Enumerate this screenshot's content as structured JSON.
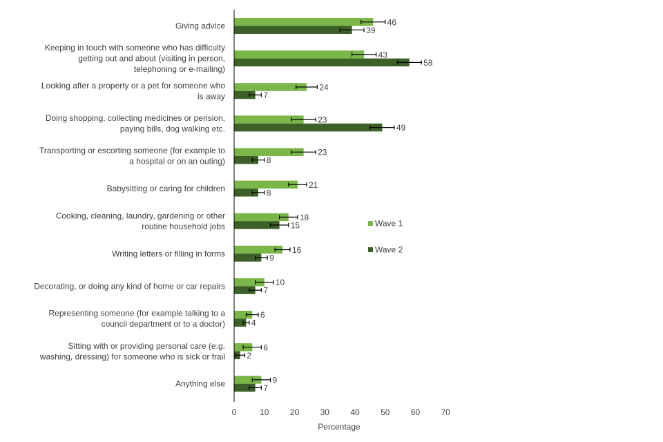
{
  "chart_data": {
    "type": "bar",
    "orientation": "horizontal",
    "title": "",
    "xlabel": "Percentage",
    "ylabel": "",
    "xlim": [
      0,
      70
    ],
    "xticks": [
      0,
      10,
      20,
      30,
      40,
      50,
      60,
      70
    ],
    "grid": false,
    "legend_position": "right",
    "categories": [
      [
        "Giving advice"
      ],
      [
        "Keeping in touch with someone who has difficulty",
        "getting out and about (visiting in person,",
        "telephoning or e-mailing)"
      ],
      [
        "Looking after a property or a pet for someone who",
        "is away"
      ],
      [
        "Doing shopping, collecting medicines or pension,",
        "paying bills, dog walking etc."
      ],
      [
        "Transporting or escorting someone (for example to",
        "a hospital or on an outing)"
      ],
      [
        "Babysitting or caring for children"
      ],
      [
        "Cooking, cleaning, laundry, gardening or other",
        "routine household jobs"
      ],
      [
        "Writing letters or filling in forms"
      ],
      [
        "Decorating, or doing any kind of home or car repairs"
      ],
      [
        "Representing someone (for example talking to a",
        "council department or to a doctor)"
      ],
      [
        "Sitting with or providing personal care (e.g.",
        "washing, dressing) for someone who is sick or frail"
      ],
      [
        "Anything else"
      ]
    ],
    "series": [
      {
        "name": "Wave 1",
        "color": "#7ab648",
        "values": [
          46,
          43,
          24,
          23,
          23,
          21,
          18,
          16,
          10,
          6,
          6,
          9
        ],
        "errors": [
          4,
          4,
          3.5,
          4,
          4,
          3,
          3,
          2.5,
          3,
          2,
          3,
          3
        ]
      },
      {
        "name": "Wave 2",
        "color": "#3d5f28",
        "values": [
          39,
          58,
          7,
          49,
          8,
          8,
          15,
          9,
          7,
          4,
          2,
          7
        ],
        "errors": [
          4,
          4,
          2,
          4,
          2,
          2,
          3,
          2,
          2,
          1,
          1.5,
          2
        ]
      }
    ]
  }
}
